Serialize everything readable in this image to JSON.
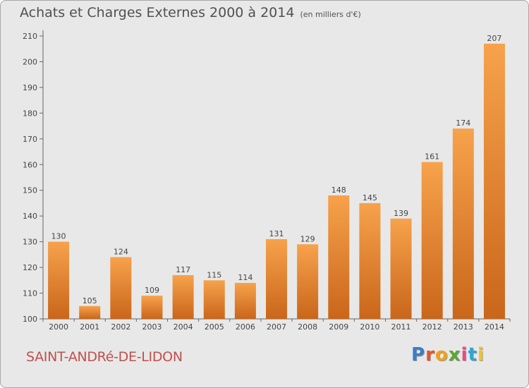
{
  "header": {
    "title": "Achats et Charges Externes 2000 à 2014",
    "unit": "(en milliers d'€)"
  },
  "footer": {
    "commune": "SAINT-ANDRé-DE-LIDON",
    "logo_text": "Proxiti"
  },
  "colors": {
    "bar_top": "#f7a24c",
    "bar_bottom": "#c9661a",
    "background": "#e8e8e8",
    "commune_text": "#c0504d"
  },
  "chart_data": {
    "type": "bar",
    "title": "Achats et Charges Externes 2000 à 2014",
    "subtitle": "(en milliers d'€)",
    "categories": [
      "2000",
      "2001",
      "2002",
      "2003",
      "2004",
      "2005",
      "2006",
      "2007",
      "2008",
      "2009",
      "2010",
      "2011",
      "2012",
      "2013",
      "2014"
    ],
    "values": [
      130,
      105,
      124,
      109,
      117,
      115,
      114,
      131,
      129,
      148,
      145,
      139,
      161,
      174,
      207
    ],
    "ylim": [
      100,
      210
    ],
    "yticks": [
      100,
      110,
      120,
      130,
      140,
      150,
      160,
      170,
      180,
      190,
      200,
      210
    ],
    "grid": false,
    "data_labels": true
  }
}
